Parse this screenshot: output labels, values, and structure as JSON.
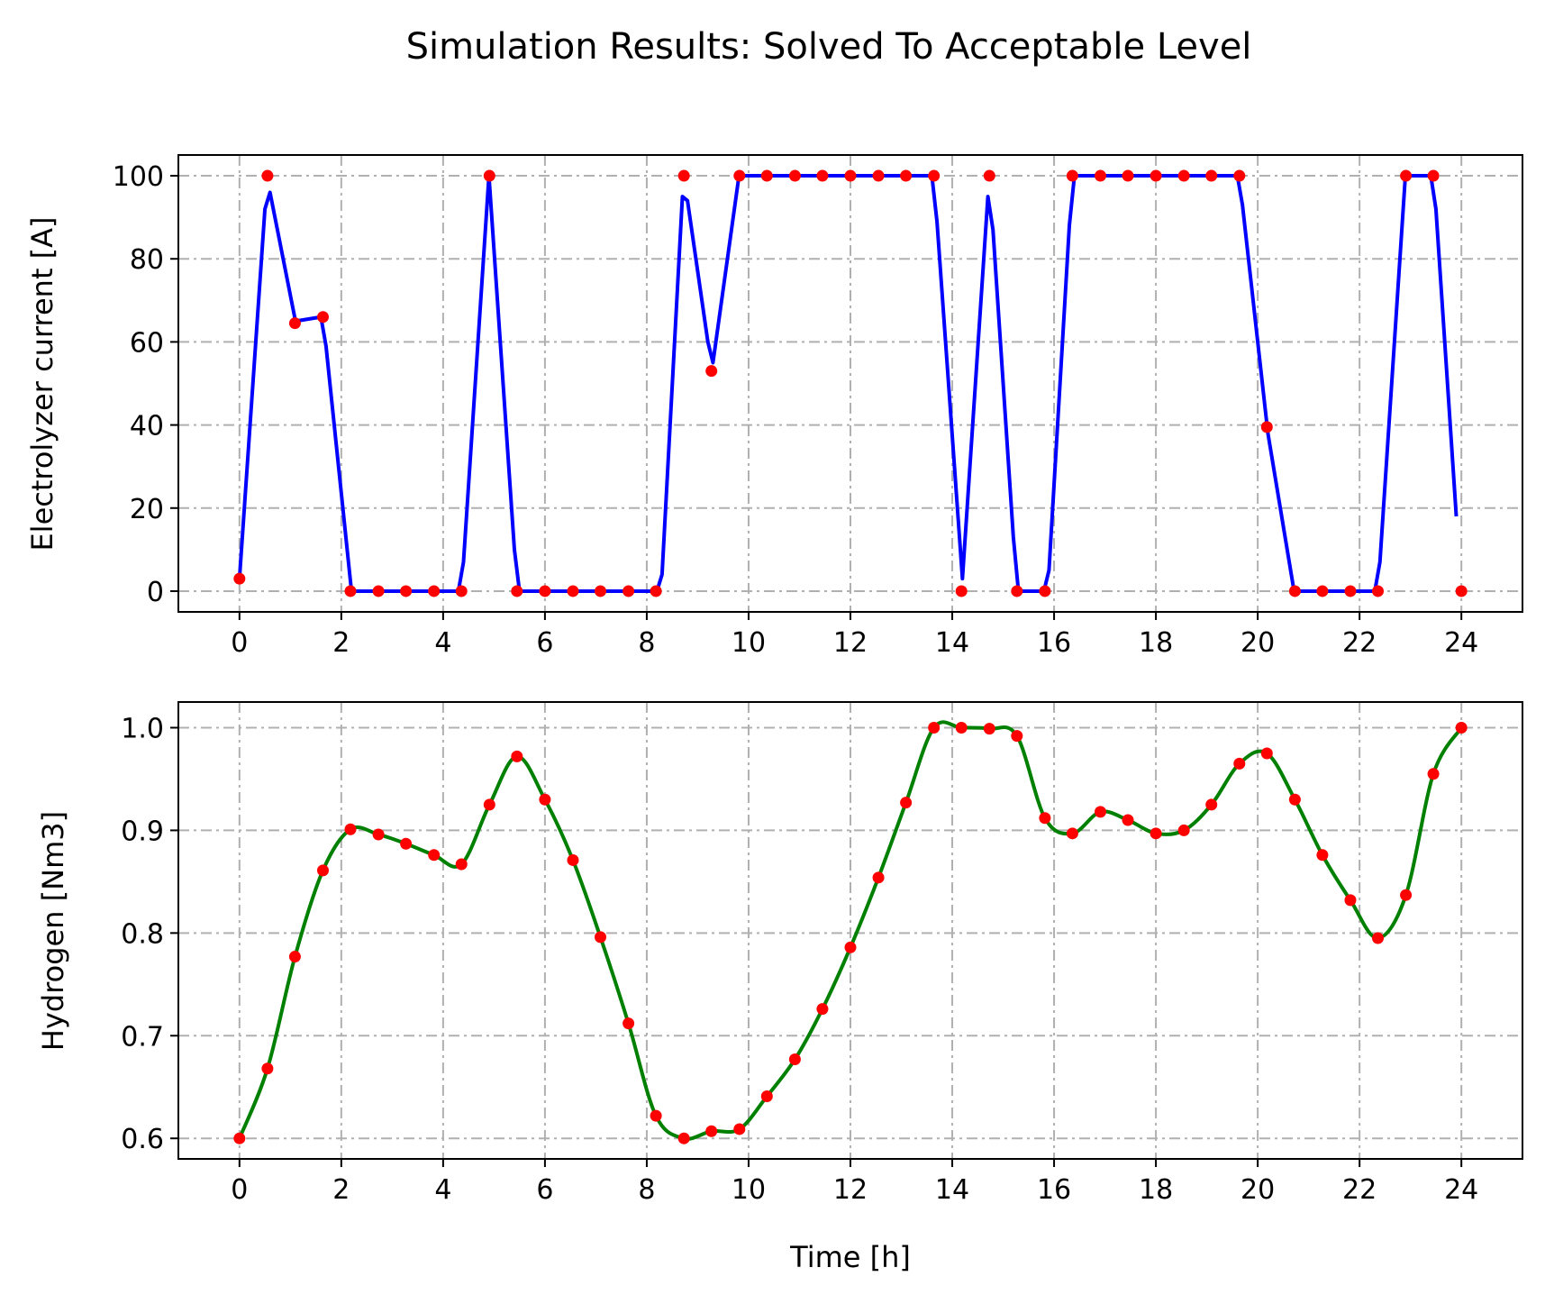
{
  "figure": {
    "title": "Simulation Results:  Solved To Acceptable Level"
  },
  "chart_data": [
    {
      "type": "line",
      "name": "top-panel",
      "xlabel": "",
      "ylabel": "Electrolyzer current [A]",
      "xlim": [
        -1.2,
        25.2
      ],
      "ylim": [
        -5,
        105
      ],
      "xticks": [
        0,
        2,
        4,
        6,
        8,
        10,
        12,
        14,
        16,
        18,
        20,
        22,
        24
      ],
      "yticks": [
        0,
        20,
        40,
        60,
        80,
        100
      ],
      "grid": true,
      "line_color": "#0000ff",
      "marker_color": "#ff0000",
      "points": {
        "x": [
          0,
          0.55,
          1.09,
          1.64,
          2.18,
          2.73,
          3.27,
          3.82,
          4.36,
          4.91,
          5.45,
          6.0,
          6.55,
          7.09,
          7.64,
          8.18,
          8.73,
          9.27,
          9.82,
          10.36,
          10.91,
          11.45,
          12.0,
          12.55,
          13.09,
          13.64,
          14.18,
          14.73,
          15.27,
          15.82,
          16.36,
          16.91,
          17.45,
          18.0,
          18.55,
          19.09,
          19.64,
          20.18,
          20.73,
          21.27,
          21.82,
          22.36,
          22.91,
          23.45,
          24.0
        ],
        "y": [
          3,
          100,
          64.5,
          66,
          0,
          0,
          0,
          0,
          0,
          100,
          0,
          0,
          0,
          0,
          0,
          0,
          100,
          53,
          100,
          100,
          100,
          100,
          100,
          100,
          100,
          100,
          0,
          100,
          0,
          0,
          100,
          100,
          100,
          100,
          100,
          100,
          100,
          39.5,
          0,
          0,
          0,
          0,
          100,
          100,
          0
        ]
      },
      "line": {
        "x": [
          0,
          0.5,
          0.6,
          1.1,
          1.6,
          1.7,
          2.2,
          4.3,
          4.4,
          4.9,
          5.4,
          5.5,
          8.2,
          8.3,
          8.7,
          8.8,
          9.2,
          9.3,
          9.8,
          9.9,
          13.6,
          13.7,
          14.2,
          14.7,
          14.8,
          15.2,
          15.3,
          15.8,
          15.9,
          16.3,
          16.4,
          19.6,
          19.7,
          20.2,
          20.7,
          20.8,
          22.3,
          22.4,
          22.9,
          23.4,
          23.5,
          23.9
        ],
        "y": [
          3,
          92,
          96,
          65,
          66,
          59,
          0,
          0,
          7,
          100,
          10,
          0,
          0,
          4,
          95,
          94,
          60,
          55,
          99,
          100,
          100,
          89,
          3,
          95,
          87,
          13,
          0,
          0,
          5,
          88,
          100,
          100,
          93,
          38,
          1,
          0,
          0,
          7,
          100,
          100,
          92,
          18
        ]
      }
    },
    {
      "type": "line",
      "name": "bottom-panel",
      "xlabel": "Time [h]",
      "ylabel": "Hydrogen [Nm3]",
      "xlim": [
        -1.2,
        25.2
      ],
      "ylim": [
        0.58,
        1.025
      ],
      "xticks": [
        0,
        2,
        4,
        6,
        8,
        10,
        12,
        14,
        16,
        18,
        20,
        22,
        24
      ],
      "yticks": [
        0.6,
        0.7,
        0.8,
        0.9,
        1.0
      ],
      "grid": true,
      "line_color": "#008000",
      "marker_color": "#ff0000",
      "points": {
        "x": [
          0,
          0.55,
          1.09,
          1.64,
          2.18,
          2.73,
          3.27,
          3.82,
          4.36,
          4.91,
          5.45,
          6.0,
          6.55,
          7.09,
          7.64,
          8.18,
          8.73,
          9.27,
          9.82,
          10.36,
          10.91,
          11.45,
          12.0,
          12.55,
          13.09,
          13.64,
          14.18,
          14.73,
          15.27,
          15.82,
          16.36,
          16.91,
          17.45,
          18.0,
          18.55,
          19.09,
          19.64,
          20.18,
          20.73,
          21.27,
          21.82,
          22.36,
          22.91,
          23.45,
          24.0
        ],
        "y": [
          0.6,
          0.668,
          0.777,
          0.861,
          0.901,
          0.896,
          0.887,
          0.876,
          0.867,
          0.925,
          0.972,
          0.93,
          0.871,
          0.796,
          0.712,
          0.622,
          0.6,
          0.607,
          0.609,
          0.641,
          0.677,
          0.726,
          0.786,
          0.854,
          0.927,
          1.0,
          1.0,
          0.999,
          0.992,
          0.912,
          0.897,
          0.918,
          0.91,
          0.897,
          0.9,
          0.925,
          0.965,
          0.975,
          0.93,
          0.876,
          0.832,
          0.795,
          0.837,
          0.955,
          1.0
        ]
      }
    }
  ]
}
